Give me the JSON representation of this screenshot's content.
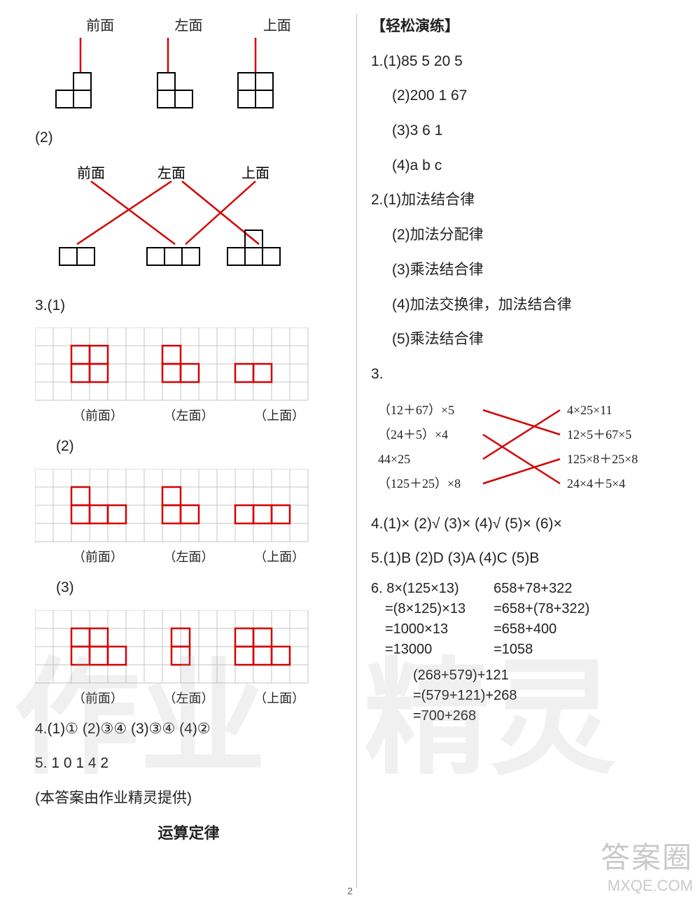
{
  "page_number": "2",
  "watermarks": {
    "left": "作业",
    "right": "精灵",
    "corner_line1": "答案圈",
    "corner_line2": "MXQE.COM"
  },
  "left": {
    "q1": {
      "labels": [
        "前面",
        "左面",
        "上面"
      ],
      "line_color": "#d40000",
      "shape_color": "#000000"
    },
    "q2_label": "(2)",
    "q2": {
      "labels": [
        "前面",
        "左面",
        "上面"
      ]
    },
    "q3_label": "3.(1)",
    "grid": {
      "cols": 15,
      "rows": 4,
      "cell": 26,
      "border_color": "#c4c4c4",
      "shape_color": "#d40000",
      "captions": [
        "（前面）",
        "（左面）",
        "（上面）"
      ]
    },
    "q3_2_label": "(2)",
    "q3_3_label": "(3)",
    "q4": "4.(1)①    (2)③④    (3)③④    (4)②",
    "q5": "5.   1   0   1   4   2",
    "credit": "(本答案由作业精灵提供)",
    "section_title": "运算定律"
  },
  "right": {
    "header": "【轻松演练】",
    "q1": {
      "lines": [
        "1.(1)85   5   20   5",
        "(2)200   1   67",
        "(3)3   6   1",
        "(4)a   b   c"
      ]
    },
    "q2": {
      "lines": [
        "2.(1)加法结合律",
        "(2)加法分配律",
        "(3)乘法结合律",
        "(4)加法交换律，加法结合律",
        "(5)乘法结合律"
      ]
    },
    "q3_label": "3.",
    "q3_match": {
      "left_items": [
        "（12＋67）×5",
        "（24＋5）×4",
        "44×25",
        "（125＋25）×8"
      ],
      "right_items": [
        "4×25×11",
        "12×5＋67×5",
        "125×8＋25×8",
        "24×4＋5×4"
      ],
      "edges": [
        [
          0,
          1
        ],
        [
          1,
          3
        ],
        [
          2,
          0
        ],
        [
          3,
          2
        ]
      ],
      "line_color": "#d40000",
      "text_color": "#222222"
    },
    "q4": "4.(1)×   (2)√   (3)×   (4)√   (5)×   (6)×",
    "q5": "5.(1)B   (2)D   (3)A   (4)C   (5)B",
    "q6": {
      "colA": [
        "6.    8×(125×13)",
        "=(8×125)×13",
        "=1000×13",
        "=13000"
      ],
      "colB": [
        "658+78+322",
        "=658+(78+322)",
        "=658+400",
        "=1058"
      ],
      "tail": [
        "(268+579)+121",
        "=(579+121)+268",
        "=700+268"
      ]
    }
  }
}
